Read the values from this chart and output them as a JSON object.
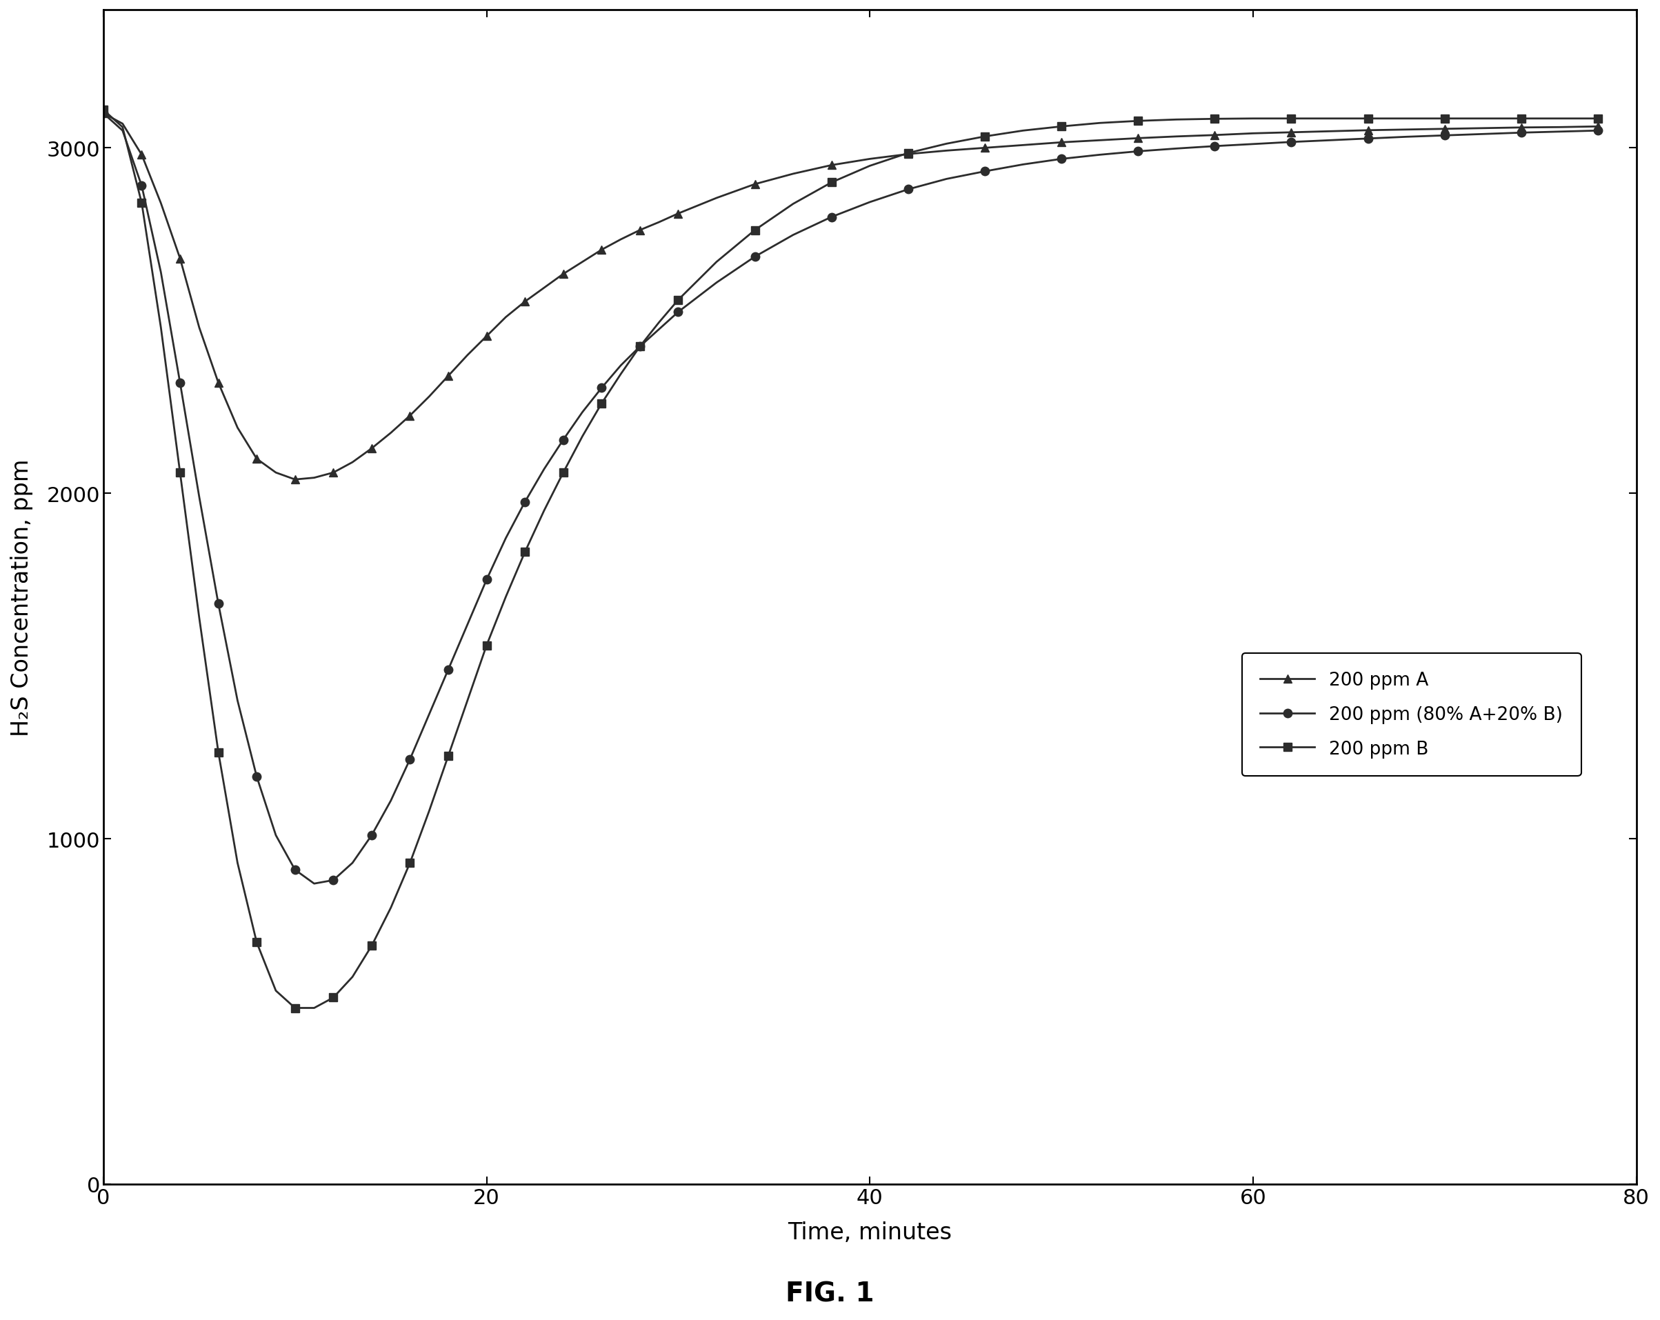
{
  "title": "FIG. 1",
  "xlabel": "Time, minutes",
  "ylabel": "H₂S Concentration, ppm",
  "xlim": [
    0,
    80
  ],
  "ylim": [
    0,
    3400
  ],
  "yticks": [
    0,
    1000,
    2000,
    3000
  ],
  "xticks": [
    0,
    20,
    40,
    60,
    80
  ],
  "background_color": "#ffffff",
  "legend_labels": [
    "200 ppm A",
    "200 ppm (80% A+20% B)",
    "200 ppm B"
  ],
  "line_color": "#2c2c2c",
  "marker_A": "^",
  "marker_AB": "o",
  "marker_B": "s",
  "markersize": 9,
  "linewidth": 2.0,
  "tick_labelsize": 22,
  "axis_labelsize": 24,
  "legend_fontsize": 19,
  "title_fontsize": 28,
  "series_A_time": [
    0,
    1,
    2,
    3,
    4,
    5,
    6,
    7,
    8,
    9,
    10,
    11,
    12,
    13,
    14,
    15,
    16,
    17,
    18,
    19,
    20,
    21,
    22,
    23,
    24,
    25,
    26,
    27,
    28,
    29,
    30,
    32,
    34,
    36,
    38,
    40,
    42,
    44,
    46,
    48,
    50,
    52,
    54,
    56,
    58,
    60,
    62,
    64,
    66,
    68,
    70,
    72,
    74,
    76,
    78
  ],
  "series_A_values": [
    3100,
    3070,
    2980,
    2840,
    2680,
    2480,
    2320,
    2190,
    2100,
    2060,
    2040,
    2045,
    2060,
    2090,
    2130,
    2175,
    2225,
    2280,
    2340,
    2400,
    2455,
    2510,
    2555,
    2595,
    2635,
    2670,
    2705,
    2735,
    2762,
    2785,
    2810,
    2855,
    2895,
    2925,
    2950,
    2968,
    2982,
    2992,
    3000,
    3008,
    3016,
    3022,
    3028,
    3033,
    3037,
    3042,
    3045,
    3048,
    3051,
    3053,
    3055,
    3057,
    3059,
    3060,
    3062
  ],
  "series_AB_time": [
    0,
    1,
    2,
    3,
    4,
    5,
    6,
    7,
    8,
    9,
    10,
    11,
    12,
    13,
    14,
    15,
    16,
    17,
    18,
    19,
    20,
    21,
    22,
    23,
    24,
    25,
    26,
    27,
    28,
    29,
    30,
    32,
    34,
    36,
    38,
    40,
    42,
    44,
    46,
    48,
    50,
    52,
    54,
    56,
    58,
    60,
    62,
    64,
    66,
    68,
    70,
    72,
    74,
    76,
    78
  ],
  "series_AB_values": [
    3100,
    3050,
    2890,
    2640,
    2320,
    1990,
    1680,
    1400,
    1180,
    1010,
    910,
    870,
    880,
    930,
    1010,
    1110,
    1230,
    1360,
    1490,
    1620,
    1750,
    1870,
    1975,
    2070,
    2155,
    2235,
    2305,
    2370,
    2425,
    2475,
    2525,
    2610,
    2685,
    2748,
    2800,
    2843,
    2880,
    2910,
    2932,
    2952,
    2968,
    2980,
    2990,
    2998,
    3005,
    3011,
    3017,
    3022,
    3027,
    3032,
    3036,
    3040,
    3044,
    3047,
    3050
  ],
  "series_B_time": [
    0,
    1,
    2,
    3,
    4,
    5,
    6,
    7,
    8,
    9,
    10,
    11,
    12,
    13,
    14,
    15,
    16,
    17,
    18,
    19,
    20,
    21,
    22,
    23,
    24,
    25,
    26,
    27,
    28,
    29,
    30,
    32,
    34,
    36,
    38,
    40,
    42,
    44,
    46,
    48,
    50,
    52,
    54,
    56,
    58,
    60,
    62,
    64,
    66,
    68,
    70,
    72,
    74,
    76,
    78
  ],
  "series_B_values": [
    3110,
    3060,
    2840,
    2480,
    2060,
    1640,
    1250,
    930,
    700,
    560,
    510,
    510,
    540,
    600,
    690,
    800,
    930,
    1080,
    1240,
    1400,
    1560,
    1700,
    1830,
    1950,
    2060,
    2165,
    2260,
    2345,
    2425,
    2495,
    2560,
    2670,
    2762,
    2838,
    2900,
    2948,
    2985,
    3012,
    3033,
    3050,
    3062,
    3072,
    3078,
    3082,
    3084,
    3085,
    3085,
    3085,
    3085,
    3085,
    3085,
    3085,
    3085,
    3085,
    3085
  ]
}
